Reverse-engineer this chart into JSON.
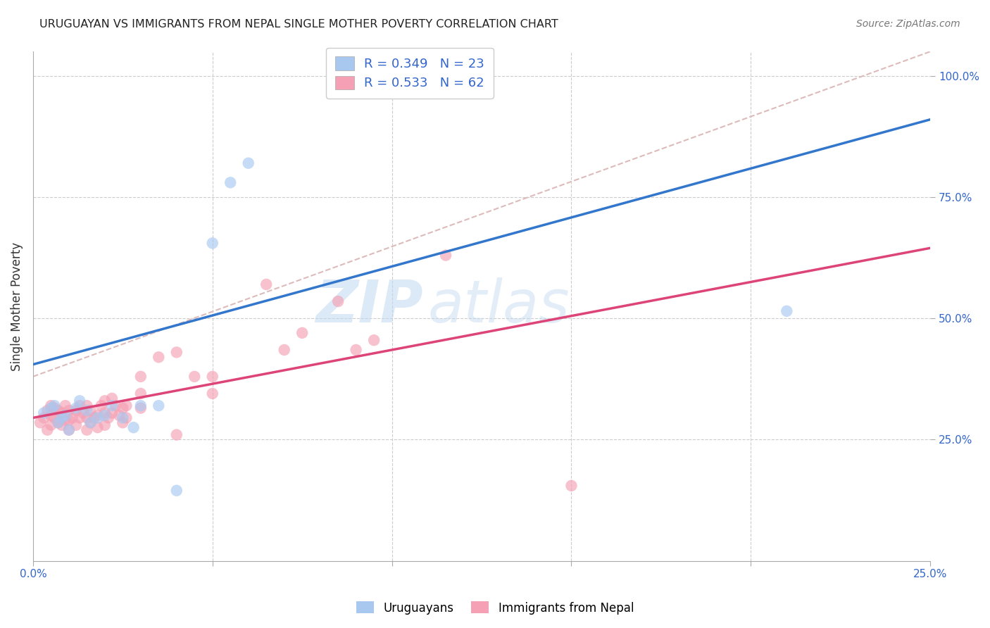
{
  "title": "URUGUAYAN VS IMMIGRANTS FROM NEPAL SINGLE MOTHER POVERTY CORRELATION CHART",
  "source": "Source: ZipAtlas.com",
  "ylabel": "Single Mother Poverty",
  "xmin": 0.0,
  "xmax": 0.25,
  "ymin": 0.0,
  "ymax": 1.05,
  "color_uruguayan": "#a8c8f0",
  "color_nepal": "#f5a0b5",
  "color_blue_line": "#3377cc",
  "color_pink_line": "#dd4477",
  "color_dashed_line": "#ddbbbb",
  "blue_line_x0": 0.0,
  "blue_line_y0": 0.405,
  "blue_line_x1": 0.25,
  "blue_line_y1": 0.91,
  "pink_line_x0": 0.0,
  "pink_line_y0": 0.295,
  "pink_line_x1": 0.25,
  "pink_line_y1": 0.645,
  "dash_line_x0": 0.0,
  "dash_line_y0": 0.38,
  "dash_line_x1": 0.25,
  "dash_line_y1": 1.05,
  "uruguayan_x": [
    0.003,
    0.005,
    0.006,
    0.007,
    0.008,
    0.009,
    0.01,
    0.012,
    0.013,
    0.015,
    0.016,
    0.018,
    0.02,
    0.022,
    0.025,
    0.028,
    0.03,
    0.035,
    0.05,
    0.055,
    0.06,
    0.21,
    0.04
  ],
  "uruguayan_y": [
    0.305,
    0.315,
    0.32,
    0.285,
    0.295,
    0.3,
    0.27,
    0.315,
    0.33,
    0.31,
    0.285,
    0.295,
    0.3,
    0.32,
    0.295,
    0.275,
    0.32,
    0.32,
    0.655,
    0.78,
    0.82,
    0.515,
    0.145
  ],
  "nepal_x": [
    0.002,
    0.003,
    0.004,
    0.004,
    0.005,
    0.005,
    0.005,
    0.006,
    0.006,
    0.007,
    0.007,
    0.008,
    0.008,
    0.009,
    0.009,
    0.01,
    0.01,
    0.01,
    0.011,
    0.012,
    0.012,
    0.013,
    0.013,
    0.014,
    0.015,
    0.015,
    0.015,
    0.016,
    0.016,
    0.017,
    0.018,
    0.018,
    0.019,
    0.02,
    0.02,
    0.02,
    0.021,
    0.022,
    0.022,
    0.023,
    0.024,
    0.025,
    0.025,
    0.026,
    0.026,
    0.03,
    0.03,
    0.03,
    0.035,
    0.04,
    0.045,
    0.05,
    0.065,
    0.07,
    0.075,
    0.085,
    0.09,
    0.095,
    0.115,
    0.15,
    0.04,
    0.05
  ],
  "nepal_y": [
    0.285,
    0.295,
    0.27,
    0.31,
    0.28,
    0.3,
    0.32,
    0.295,
    0.315,
    0.285,
    0.31,
    0.28,
    0.305,
    0.29,
    0.32,
    0.27,
    0.29,
    0.31,
    0.295,
    0.28,
    0.31,
    0.295,
    0.32,
    0.305,
    0.27,
    0.295,
    0.32,
    0.285,
    0.31,
    0.295,
    0.275,
    0.3,
    0.32,
    0.28,
    0.305,
    0.33,
    0.295,
    0.305,
    0.335,
    0.32,
    0.3,
    0.285,
    0.315,
    0.295,
    0.32,
    0.315,
    0.345,
    0.38,
    0.42,
    0.43,
    0.38,
    0.38,
    0.57,
    0.435,
    0.47,
    0.535,
    0.435,
    0.455,
    0.63,
    0.155,
    0.26,
    0.345
  ],
  "watermark_zip": "ZIP",
  "watermark_atlas": "atlas",
  "legend_entry1": "R = 0.349   N = 23",
  "legend_entry2": "R = 0.533   N = 62",
  "legend_label1": "Uruguayans",
  "legend_label2": "Immigrants from Nepal"
}
